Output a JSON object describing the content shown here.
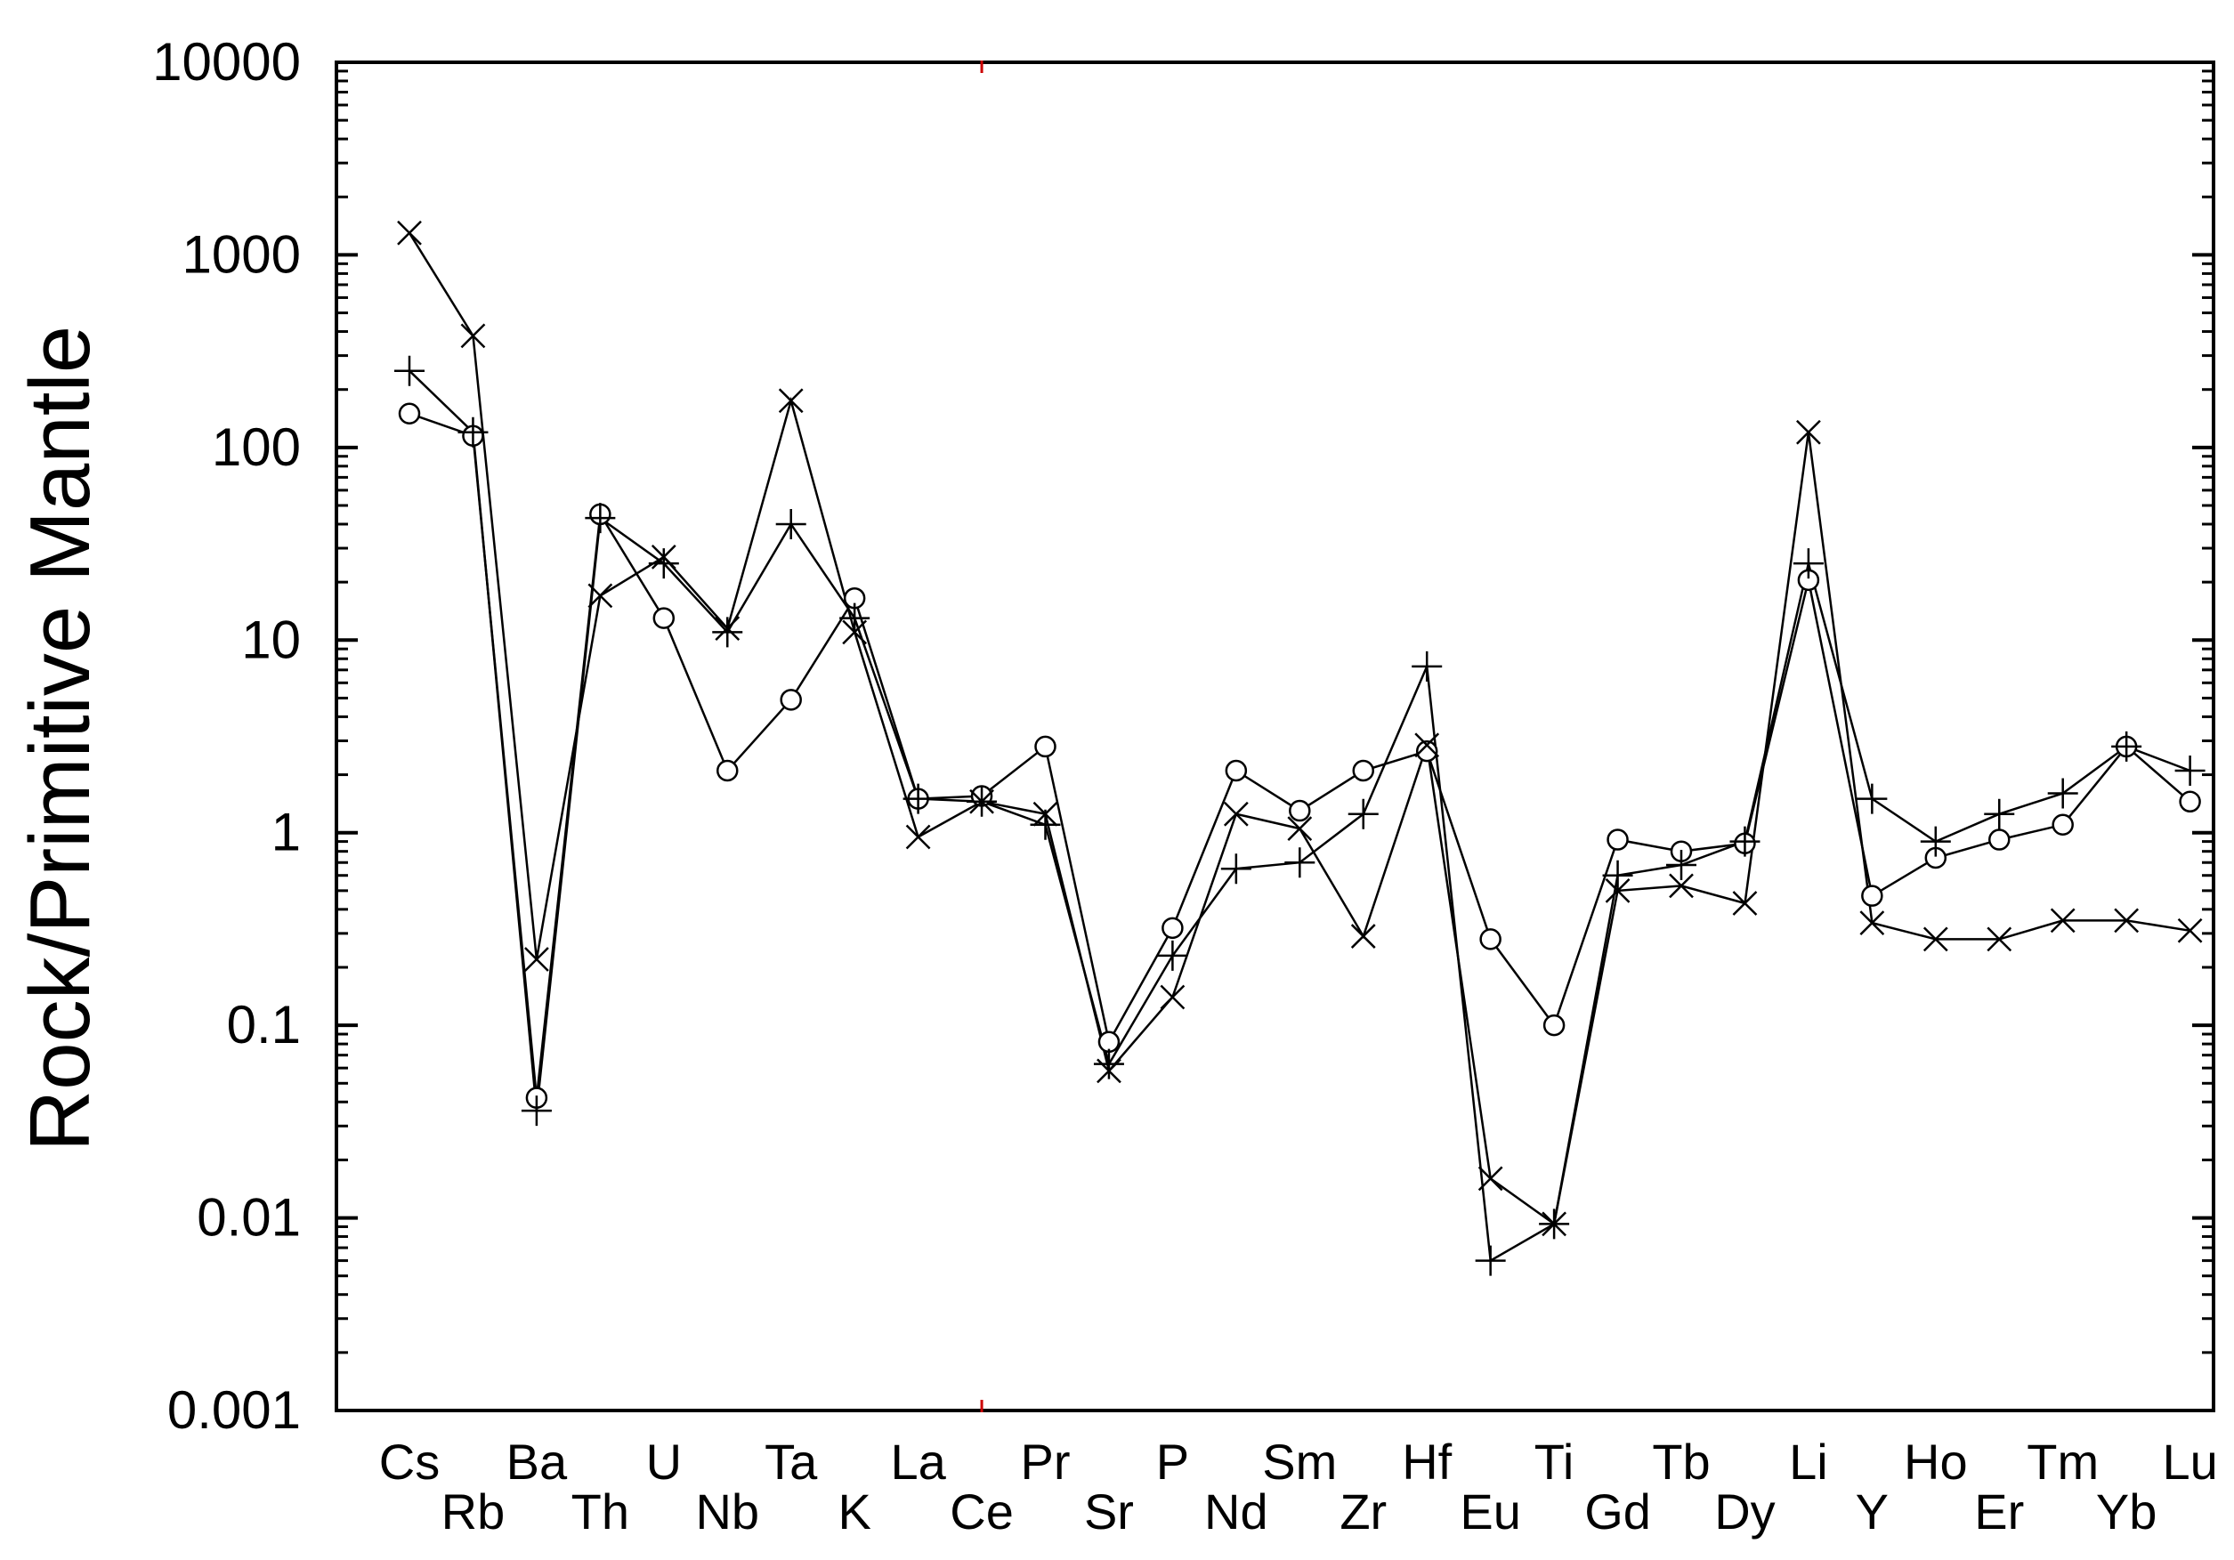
{
  "chart_data": {
    "type": "line",
    "title": "",
    "xlabel": "",
    "ylabel": "Rock/Primitive Mantle",
    "yscale": "log",
    "ylim": [
      0.001,
      10000
    ],
    "y_ticks": [
      "10000",
      "1000",
      "100",
      "10",
      "1",
      "0.1",
      "0.01",
      "0.001"
    ],
    "grid": false,
    "legend": "none",
    "categories": [
      "Cs",
      "Rb",
      "Ba",
      "Th",
      "U",
      "Nb",
      "Ta",
      "K",
      "La",
      "Ce",
      "Pr",
      "Sr",
      "P",
      "Nd",
      "Sm",
      "Zr",
      "Hf",
      "Eu",
      "Ti",
      "Gd",
      "Tb",
      "Dy",
      "Li",
      "Y",
      "Ho",
      "Er",
      "Tm",
      "Yb",
      "Lu"
    ],
    "series": [
      {
        "marker": "circle",
        "values": [
          150,
          115,
          0.042,
          45,
          13,
          2.1,
          4.9,
          16.5,
          1.5,
          1.55,
          2.8,
          0.082,
          0.32,
          2.1,
          1.3,
          2.1,
          2.65,
          0.28,
          0.1,
          0.92,
          0.8,
          0.88,
          20.5,
          0.47,
          0.74,
          0.92,
          1.1,
          2.8,
          1.45
        ]
      },
      {
        "marker": "plus",
        "values": [
          250,
          120,
          0.036,
          43,
          25,
          11,
          40,
          13,
          1.5,
          1.45,
          1.1,
          0.063,
          0.23,
          0.65,
          0.7,
          1.25,
          7.3,
          0.006,
          0.0093,
          0.6,
          0.68,
          0.9,
          25,
          1.5,
          0.9,
          1.25,
          1.6,
          2.8,
          2.1
        ]
      },
      {
        "marker": "x",
        "values": [
          1300,
          380,
          0.22,
          17,
          27,
          11.5,
          175,
          11,
          0.95,
          1.45,
          1.25,
          0.058,
          0.14,
          1.25,
          1.05,
          0.29,
          2.85,
          0.016,
          0.0093,
          0.5,
          0.53,
          0.43,
          120,
          0.34,
          0.28,
          0.28,
          0.35,
          0.35,
          0.31
        ]
      }
    ]
  }
}
